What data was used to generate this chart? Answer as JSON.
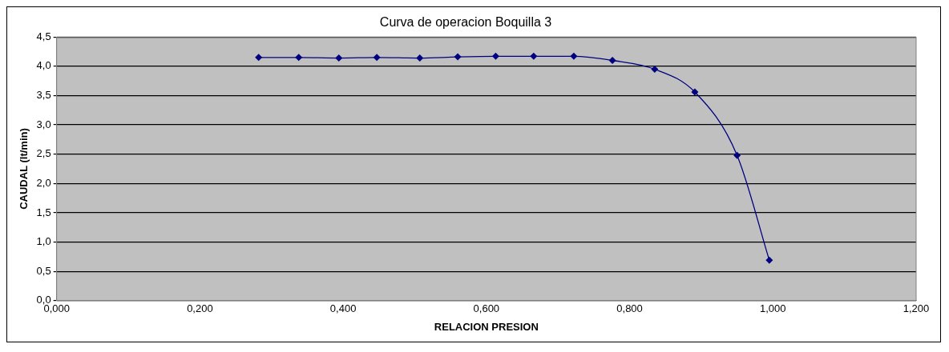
{
  "chart_data": {
    "type": "line",
    "title": "Curva de operacion Boquilla 3",
    "xlabel": "RELACION PRESION",
    "ylabel": "CAUDAL (lt/min)",
    "x": [
      0.282,
      0.338,
      0.394,
      0.447,
      0.507,
      0.56,
      0.613,
      0.666,
      0.722,
      0.776,
      0.835,
      0.891,
      0.95,
      0.995
    ],
    "series": [
      {
        "color": "#000080",
        "values": [
          4.15,
          4.15,
          4.14,
          4.15,
          4.14,
          4.16,
          4.17,
          4.17,
          4.17,
          4.1,
          3.95,
          3.56,
          2.48,
          0.69
        ]
      }
    ],
    "xlim": [
      0,
      1.2
    ],
    "xticks": [
      {
        "value": 0,
        "label": "0,000"
      },
      {
        "value": 0.2,
        "label": "0,200"
      },
      {
        "value": 0.4,
        "label": "0,400"
      },
      {
        "value": 0.6,
        "label": "0,600"
      },
      {
        "value": 0.8,
        "label": "0,800"
      },
      {
        "value": 1.0,
        "label": "1,000"
      },
      {
        "value": 1.2,
        "label": "1,200"
      }
    ],
    "ylim": [
      0,
      4.5
    ],
    "yticks": [
      {
        "value": 0,
        "label": "0,0"
      },
      {
        "value": 0.5,
        "label": "0,5"
      },
      {
        "value": 1,
        "label": "1,0"
      },
      {
        "value": 1.5,
        "label": "1,5"
      },
      {
        "value": 2,
        "label": "2,0"
      },
      {
        "value": 2.5,
        "label": "2,5"
      },
      {
        "value": 3,
        "label": "3,0"
      },
      {
        "value": 3.5,
        "label": "3,5"
      },
      {
        "value": 4,
        "label": "4,0"
      },
      {
        "value": 4.5,
        "label": "4,5"
      }
    ],
    "grid": "y",
    "legend": false,
    "marker": "diamond",
    "line_style": "solid"
  }
}
